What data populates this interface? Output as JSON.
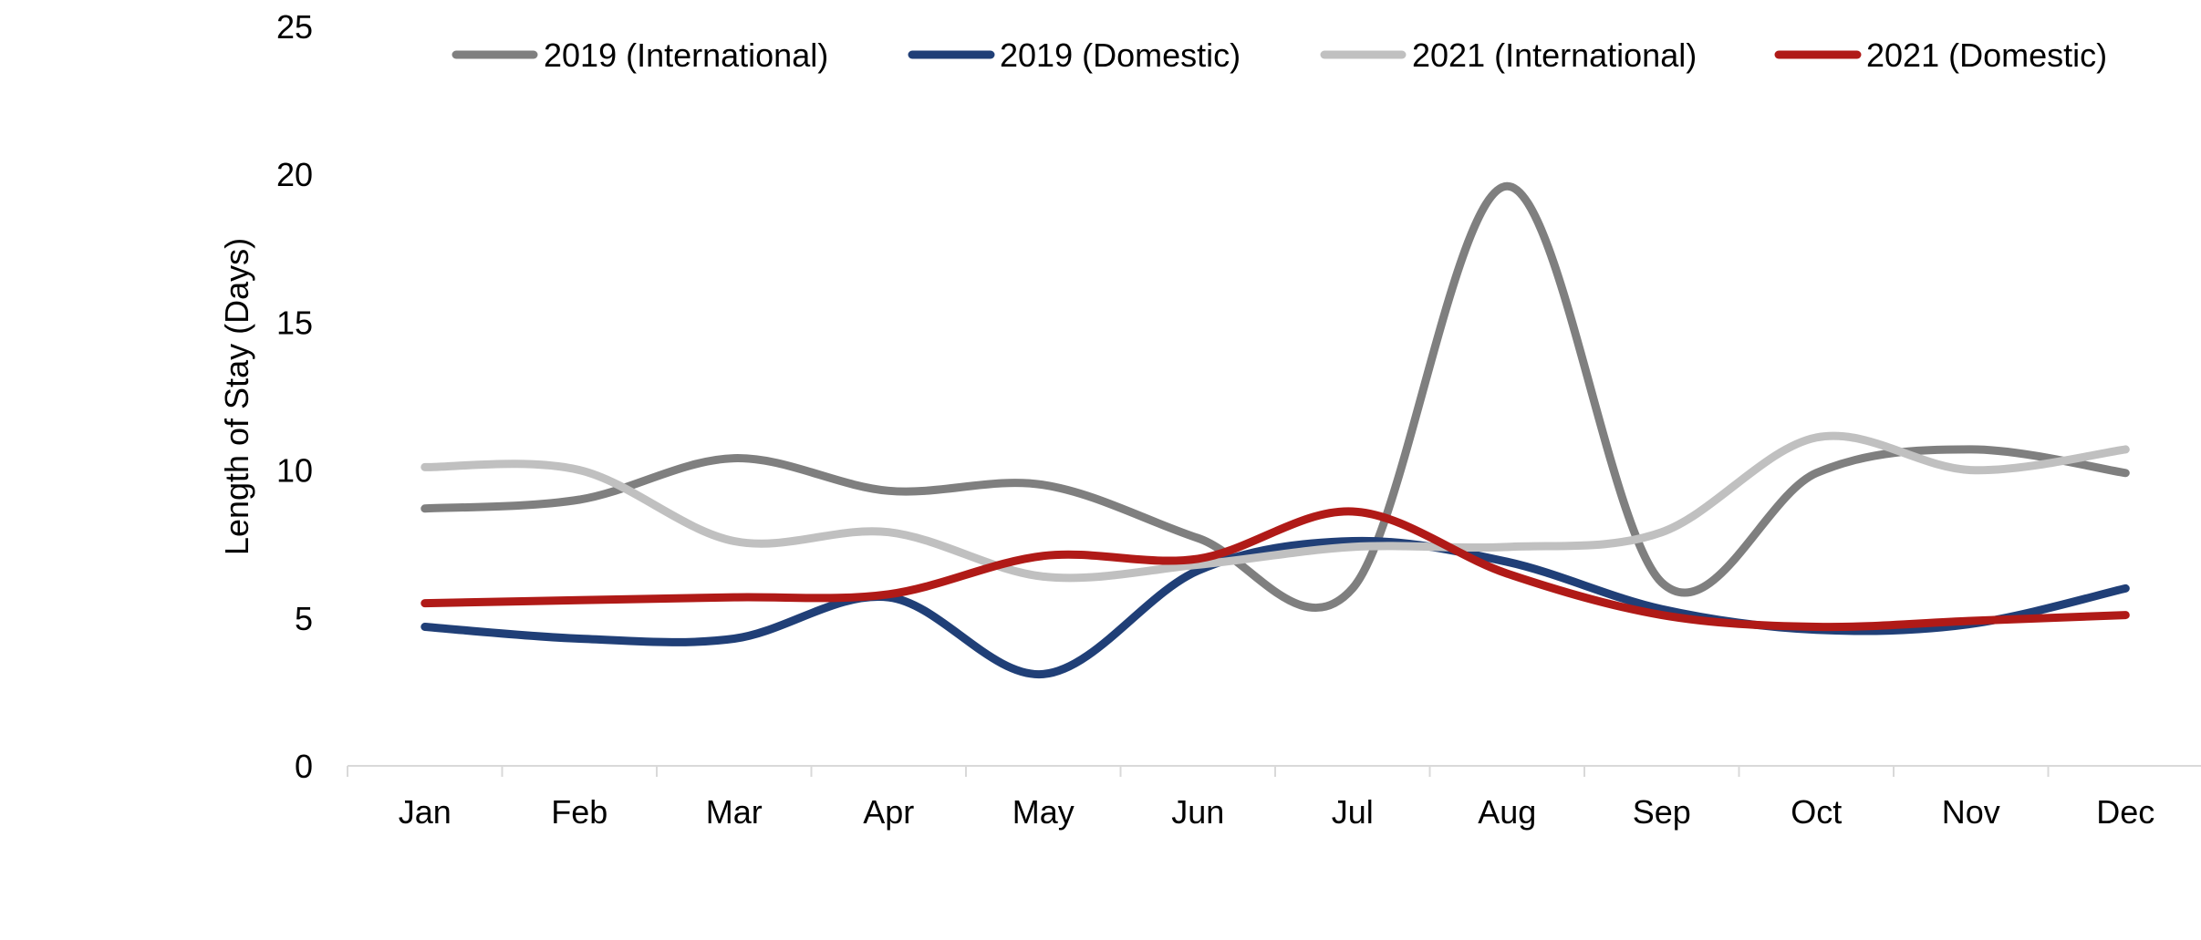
{
  "chart_data": {
    "type": "line",
    "title": "",
    "xlabel": "",
    "ylabel": "Length of Stay (Days)",
    "categories": [
      "Jan",
      "Feb",
      "Mar",
      "Apr",
      "May",
      "Jun",
      "Jul",
      "Aug",
      "Sep",
      "Oct",
      "Nov",
      "Dec"
    ],
    "ylim": [
      0,
      25
    ],
    "yticks": [
      "0",
      "5",
      "10",
      "15",
      "20",
      "25"
    ],
    "grid": false,
    "smooth": true,
    "legend_position": "top",
    "series": [
      {
        "name": "2019 (International)",
        "color": "#7f7f7f",
        "values": [
          8.7,
          9.0,
          10.4,
          9.3,
          9.5,
          7.7,
          6.0,
          19.6,
          6.2,
          9.9,
          10.7,
          9.9
        ]
      },
      {
        "name": "2019 (Domestic)",
        "color": "#203f77",
        "values": [
          4.7,
          4.3,
          4.3,
          5.7,
          3.1,
          6.6,
          7.6,
          6.9,
          5.3,
          4.6,
          4.8,
          6.0
        ]
      },
      {
        "name": "2021 (International)",
        "color": "#c0c0c0",
        "values": [
          10.1,
          10.0,
          7.6,
          7.9,
          6.4,
          6.8,
          7.4,
          7.4,
          7.9,
          11.1,
          10.0,
          10.7
        ]
      },
      {
        "name": "2021 (Domestic)",
        "color": "#b01a17",
        "values": [
          5.5,
          5.6,
          5.7,
          5.8,
          7.1,
          7.0,
          8.6,
          6.5,
          5.1,
          4.7,
          4.9,
          5.1
        ]
      }
    ]
  }
}
